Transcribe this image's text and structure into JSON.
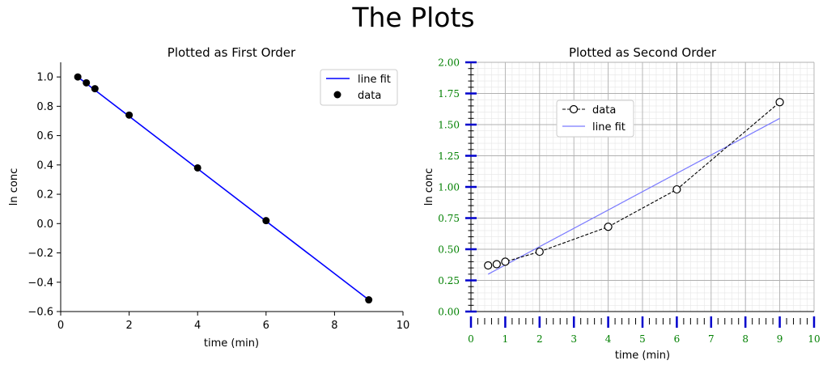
{
  "figure": {
    "title": "The Plots"
  },
  "colors": {
    "fit_line": "#0000ff",
    "data_marker": "#000000",
    "fit_line_light": "#7a7aff",
    "tick_label_right": "#008000",
    "major_tick_right": "#0000cc"
  },
  "chart_data": [
    {
      "type": "line",
      "title": "Plotted as First Order",
      "xlabel": "time (min)",
      "ylabel": "ln conc",
      "xlim": [
        0,
        10
      ],
      "ylim": [
        -0.6,
        1.1
      ],
      "xticks": [
        0,
        2,
        4,
        6,
        8,
        10
      ],
      "yticks": [
        -0.6,
        -0.4,
        -0.2,
        0.0,
        0.2,
        0.4,
        0.6,
        0.8,
        1.0
      ],
      "xtick_labels": [
        "0",
        "2",
        "4",
        "6",
        "8",
        "10"
      ],
      "ytick_labels": [
        "−0.6",
        "−0.4",
        "−0.2",
        "0.0",
        "0.2",
        "0.4",
        "0.6",
        "0.8",
        "1.0"
      ],
      "grid": false,
      "legend_position": "top-right",
      "series": [
        {
          "name": "line fit",
          "kind": "line",
          "x": [
            0.5,
            9
          ],
          "y": [
            1.0,
            -0.52
          ]
        },
        {
          "name": "data",
          "kind": "scatter",
          "x": [
            0.5,
            0.75,
            1,
            2,
            4,
            6,
            9
          ],
          "y": [
            1.0,
            0.96,
            0.92,
            0.74,
            0.38,
            0.02,
            -0.52
          ]
        }
      ]
    },
    {
      "type": "line",
      "title": "Plotted as Second Order",
      "xlabel": "time (min)",
      "ylabel": "ln conc",
      "xlim": [
        0,
        10
      ],
      "ylim": [
        0,
        2
      ],
      "xticks": [
        0,
        1,
        2,
        3,
        4,
        5,
        6,
        7,
        8,
        9,
        10
      ],
      "yticks": [
        0,
        0.25,
        0.5,
        0.75,
        1.0,
        1.25,
        1.5,
        1.75,
        2.0
      ],
      "xtick_labels": [
        "0",
        "1",
        "2",
        "3",
        "4",
        "5",
        "6",
        "7",
        "8",
        "9",
        "10"
      ],
      "ytick_labels": [
        "0.00",
        "0.25",
        "0.50",
        "0.75",
        "1.00",
        "1.25",
        "1.50",
        "1.75",
        "2.00"
      ],
      "grid": true,
      "legend_position": "upper-left",
      "series": [
        {
          "name": "data",
          "kind": "line-markers",
          "x": [
            0.5,
            0.75,
            1,
            2,
            4,
            6,
            9
          ],
          "y": [
            0.37,
            0.38,
            0.4,
            0.48,
            0.68,
            0.98,
            1.68
          ]
        },
        {
          "name": "line fit",
          "kind": "line",
          "x": [
            0.5,
            9
          ],
          "y": [
            0.3,
            1.55
          ]
        }
      ]
    }
  ]
}
